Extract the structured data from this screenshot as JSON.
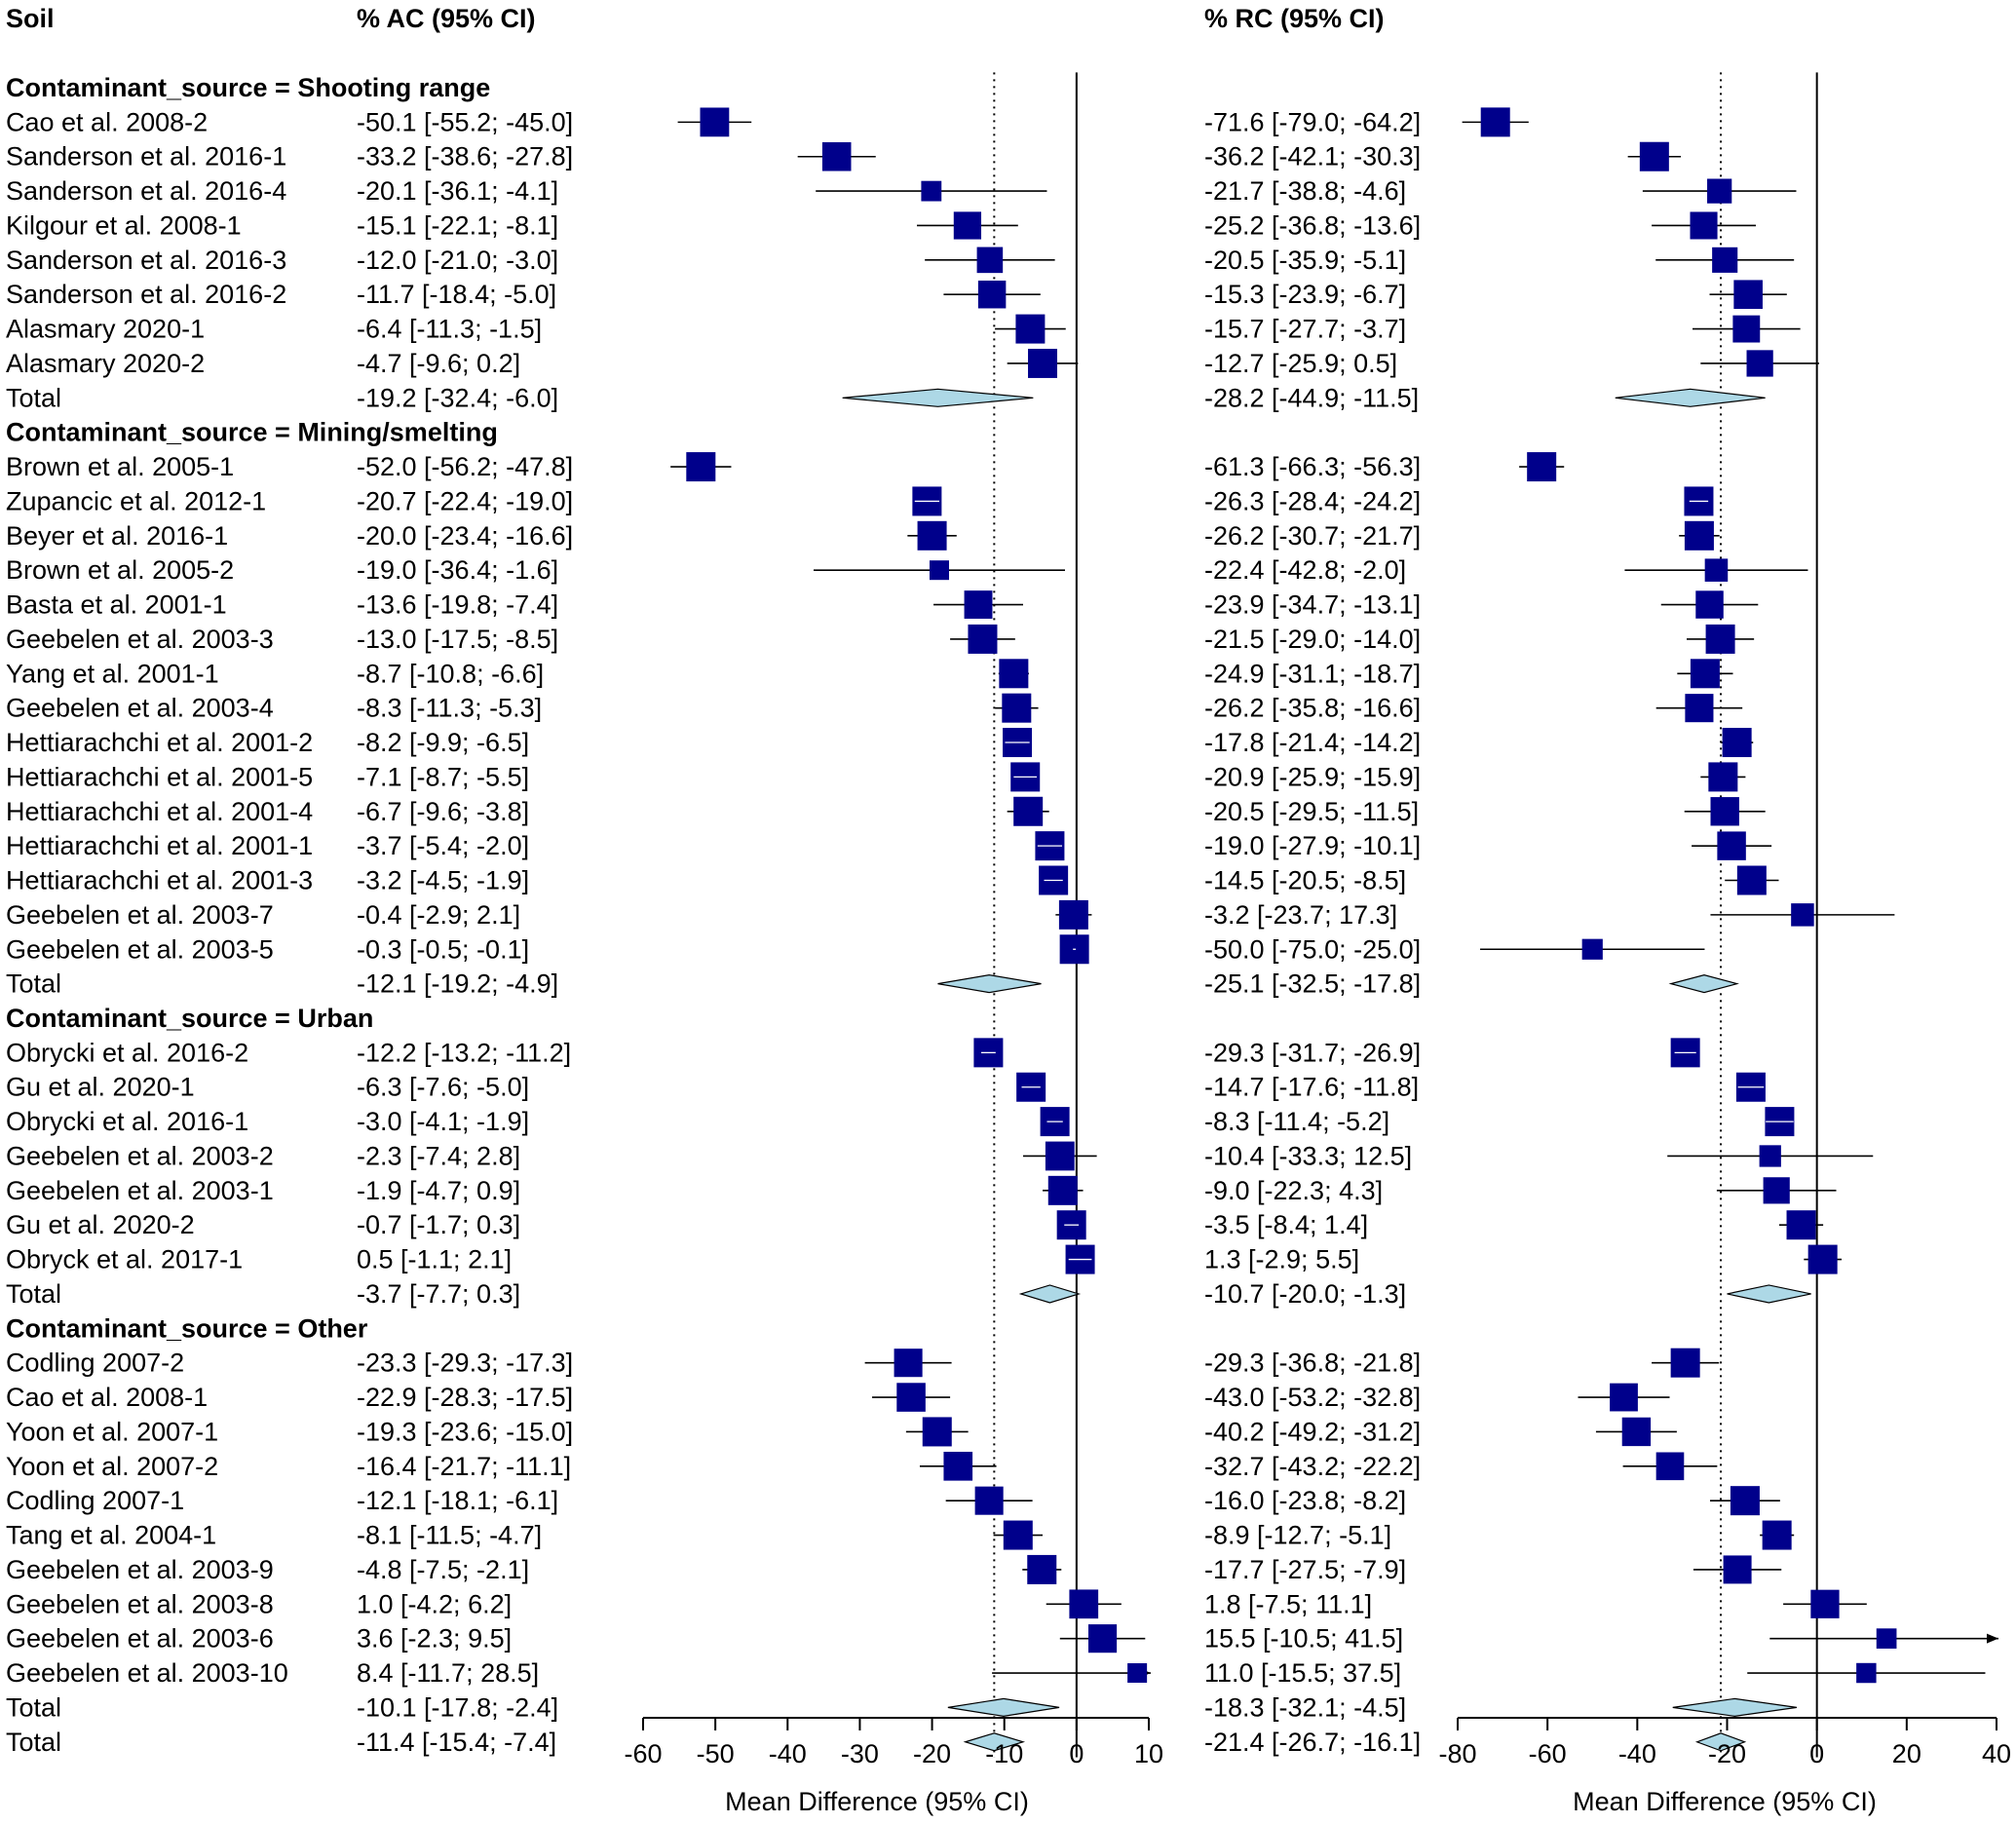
{
  "chart_data": {
    "type": "forest",
    "panels": [
      {
        "id": "ac",
        "header": "% AC (95% CI)",
        "xlabel": "Mean Difference (95% CI)",
        "xlim": [
          -60,
          10
        ],
        "ticks": [
          -60,
          -50,
          -40,
          -30,
          -20,
          -10,
          0,
          10
        ],
        "overall_ref_line": -11.4,
        "null_line": 0
      },
      {
        "id": "rc",
        "header": "% RC (95% CI)",
        "xlabel": "Mean Difference (95% CI)",
        "xlim": [
          -80,
          40
        ],
        "ticks": [
          -80,
          -60,
          -40,
          -20,
          0,
          20,
          40
        ],
        "overall_ref_line": -21.4,
        "null_line": 0
      }
    ],
    "soil_header": "Soil",
    "rows": [
      {
        "kind": "group",
        "label": "Contaminant_source = Shooting range"
      },
      {
        "kind": "study",
        "label": "Cao et al. 2008-2",
        "ac": [
          -50.1,
          -55.2,
          -45.0
        ],
        "ac_text": "-50.1 [-55.2; -45.0]",
        "rc": [
          -71.6,
          -79.0,
          -64.2
        ],
        "rc_text": "-71.6 [-79.0; -64.2]"
      },
      {
        "kind": "study",
        "label": "Sanderson et al. 2016-1",
        "ac": [
          -33.2,
          -38.6,
          -27.8
        ],
        "ac_text": "-33.2 [-38.6; -27.8]",
        "rc": [
          -36.2,
          -42.1,
          -30.3
        ],
        "rc_text": "-36.2 [-42.1; -30.3]"
      },
      {
        "kind": "study",
        "label": "Sanderson et al. 2016-4",
        "ac": [
          -20.1,
          -36.1,
          -4.1
        ],
        "ac_text": "-20.1 [-36.1; -4.1]",
        "rc": [
          -21.7,
          -38.8,
          -4.6
        ],
        "rc_text": "-21.7 [-38.8; -4.6]"
      },
      {
        "kind": "study",
        "label": "Kilgour et al. 2008-1",
        "ac": [
          -15.1,
          -22.1,
          -8.1
        ],
        "ac_text": "-15.1 [-22.1; -8.1]",
        "rc": [
          -25.2,
          -36.8,
          -13.6
        ],
        "rc_text": "-25.2 [-36.8; -13.6]"
      },
      {
        "kind": "study",
        "label": "Sanderson et al. 2016-3",
        "ac": [
          -12.0,
          -21.0,
          -3.0
        ],
        "ac_text": "-12.0 [-21.0; -3.0]",
        "rc": [
          -20.5,
          -35.9,
          -5.1
        ],
        "rc_text": "-20.5 [-35.9; -5.1]"
      },
      {
        "kind": "study",
        "label": "Sanderson et al. 2016-2",
        "ac": [
          -11.7,
          -18.4,
          -5.0
        ],
        "ac_text": "-11.7 [-18.4; -5.0]",
        "rc": [
          -15.3,
          -23.9,
          -6.7
        ],
        "rc_text": "-15.3 [-23.9; -6.7]"
      },
      {
        "kind": "study",
        "label": "Alasmary 2020-1",
        "ac": [
          -6.4,
          -11.3,
          -1.5
        ],
        "ac_text": "-6.4 [-11.3; -1.5]",
        "rc": [
          -15.7,
          -27.7,
          -3.7
        ],
        "rc_text": "-15.7 [-27.7; -3.7]"
      },
      {
        "kind": "study",
        "label": "Alasmary 2020-2",
        "ac": [
          -4.7,
          -9.6,
          0.2
        ],
        "ac_text": "-4.7 [-9.6; 0.2]",
        "rc": [
          -12.7,
          -25.9,
          0.5
        ],
        "rc_text": "-12.7 [-25.9; 0.5]"
      },
      {
        "kind": "total",
        "label": "Total",
        "ac": [
          -19.2,
          -32.4,
          -6.0
        ],
        "ac_text": "-19.2 [-32.4; -6.0]",
        "rc": [
          -28.2,
          -44.9,
          -11.5
        ],
        "rc_text": "-28.2 [-44.9; -11.5]"
      },
      {
        "kind": "group",
        "label": "Contaminant_source = Mining/smelting"
      },
      {
        "kind": "study",
        "label": "Brown et al. 2005-1",
        "ac": [
          -52.0,
          -56.2,
          -47.8
        ],
        "ac_text": "-52.0 [-56.2; -47.8]",
        "rc": [
          -61.3,
          -66.3,
          -56.3
        ],
        "rc_text": "-61.3 [-66.3; -56.3]"
      },
      {
        "kind": "study",
        "label": "Zupancic et al. 2012-1",
        "ac": [
          -20.7,
          -22.4,
          -19.0
        ],
        "ac_text": "-20.7 [-22.4; -19.0]",
        "rc": [
          -26.3,
          -28.4,
          -24.2
        ],
        "rc_text": "-26.3 [-28.4; -24.2]"
      },
      {
        "kind": "study",
        "label": "Beyer et al. 2016-1",
        "ac": [
          -20.0,
          -23.4,
          -16.6
        ],
        "ac_text": "-20.0 [-23.4; -16.6]",
        "rc": [
          -26.2,
          -30.7,
          -21.7
        ],
        "rc_text": "-26.2 [-30.7; -21.7]"
      },
      {
        "kind": "study",
        "label": "Brown et al. 2005-2",
        "ac": [
          -19.0,
          -36.4,
          -1.6
        ],
        "ac_text": "-19.0 [-36.4; -1.6]",
        "rc": [
          -22.4,
          -42.8,
          -2.0
        ],
        "rc_text": "-22.4 [-42.8; -2.0]"
      },
      {
        "kind": "study",
        "label": "Basta et al. 2001-1",
        "ac": [
          -13.6,
          -19.8,
          -7.4
        ],
        "ac_text": "-13.6 [-19.8; -7.4]",
        "rc": [
          -23.9,
          -34.7,
          -13.1
        ],
        "rc_text": "-23.9 [-34.7; -13.1]"
      },
      {
        "kind": "study",
        "label": "Geebelen et al. 2003-3",
        "ac": [
          -13.0,
          -17.5,
          -8.5
        ],
        "ac_text": "-13.0 [-17.5; -8.5]",
        "rc": [
          -21.5,
          -29.0,
          -14.0
        ],
        "rc_text": "-21.5 [-29.0; -14.0]"
      },
      {
        "kind": "study",
        "label": "Yang et al. 2001-1",
        "ac": [
          -8.7,
          -10.8,
          -6.6
        ],
        "ac_text": "-8.7 [-10.8; -6.6]",
        "rc": [
          -24.9,
          -31.1,
          -18.7
        ],
        "rc_text": "-24.9 [-31.1; -18.7]"
      },
      {
        "kind": "study",
        "label": "Geebelen et al. 2003-4",
        "ac": [
          -8.3,
          -11.3,
          -5.3
        ],
        "ac_text": "-8.3 [-11.3; -5.3]",
        "rc": [
          -26.2,
          -35.8,
          -16.6
        ],
        "rc_text": "-26.2 [-35.8; -16.6]"
      },
      {
        "kind": "study",
        "label": "Hettiarachchi et al. 2001-2",
        "ac": [
          -8.2,
          -9.9,
          -6.5
        ],
        "ac_text": "-8.2 [-9.9; -6.5]",
        "rc": [
          -17.8,
          -21.4,
          -14.2
        ],
        "rc_text": "-17.8 [-21.4; -14.2]"
      },
      {
        "kind": "study",
        "label": "Hettiarachchi et al. 2001-5",
        "ac": [
          -7.1,
          -8.7,
          -5.5
        ],
        "ac_text": "-7.1 [-8.7; -5.5]",
        "rc": [
          -20.9,
          -25.9,
          -15.9
        ],
        "rc_text": "-20.9 [-25.9; -15.9]"
      },
      {
        "kind": "study",
        "label": "Hettiarachchi et al. 2001-4",
        "ac": [
          -6.7,
          -9.6,
          -3.8
        ],
        "ac_text": "-6.7 [-9.6; -3.8]",
        "rc": [
          -20.5,
          -29.5,
          -11.5
        ],
        "rc_text": "-20.5 [-29.5; -11.5]"
      },
      {
        "kind": "study",
        "label": "Hettiarachchi et al. 2001-1",
        "ac": [
          -3.7,
          -5.4,
          -2.0
        ],
        "ac_text": "-3.7 [-5.4; -2.0]",
        "rc": [
          -19.0,
          -27.9,
          -10.1
        ],
        "rc_text": "-19.0 [-27.9; -10.1]"
      },
      {
        "kind": "study",
        "label": "Hettiarachchi et al. 2001-3",
        "ac": [
          -3.2,
          -4.5,
          -1.9
        ],
        "ac_text": "-3.2 [-4.5; -1.9]",
        "rc": [
          -14.5,
          -20.5,
          -8.5
        ],
        "rc_text": "-14.5 [-20.5; -8.5]"
      },
      {
        "kind": "study",
        "label": "Geebelen et al. 2003-7",
        "ac": [
          -0.4,
          -2.9,
          2.1
        ],
        "ac_text": "-0.4 [-2.9; 2.1]",
        "rc": [
          -3.2,
          -23.7,
          17.3
        ],
        "rc_text": "-3.2 [-23.7; 17.3]"
      },
      {
        "kind": "study",
        "label": "Geebelen et al. 2003-5",
        "ac": [
          -0.3,
          -0.5,
          -0.1
        ],
        "ac_text": "-0.3 [-0.5; -0.1]",
        "rc": [
          -50.0,
          -75.0,
          -25.0
        ],
        "rc_text": "-50.0 [-75.0; -25.0]"
      },
      {
        "kind": "total",
        "label": "Total",
        "ac": [
          -12.1,
          -19.2,
          -4.9
        ],
        "ac_text": "-12.1 [-19.2; -4.9]",
        "rc": [
          -25.1,
          -32.5,
          -17.8
        ],
        "rc_text": "-25.1 [-32.5; -17.8]"
      },
      {
        "kind": "group",
        "label": "Contaminant_source = Urban"
      },
      {
        "kind": "study",
        "label": "Obrycki et al. 2016-2",
        "ac": [
          -12.2,
          -13.2,
          -11.2
        ],
        "ac_text": "-12.2 [-13.2; -11.2]",
        "rc": [
          -29.3,
          -31.7,
          -26.9
        ],
        "rc_text": "-29.3 [-31.7; -26.9]"
      },
      {
        "kind": "study",
        "label": "Gu et al. 2020-1",
        "ac": [
          -6.3,
          -7.6,
          -5.0
        ],
        "ac_text": "-6.3 [-7.6; -5.0]",
        "rc": [
          -14.7,
          -17.6,
          -11.8
        ],
        "rc_text": "-14.7 [-17.6; -11.8]"
      },
      {
        "kind": "study",
        "label": "Obrycki et al. 2016-1",
        "ac": [
          -3.0,
          -4.1,
          -1.9
        ],
        "ac_text": "-3.0 [-4.1; -1.9]",
        "rc": [
          -8.3,
          -11.4,
          -5.2
        ],
        "rc_text": "-8.3 [-11.4; -5.2]"
      },
      {
        "kind": "study",
        "label": "Geebelen et al. 2003-2",
        "ac": [
          -2.3,
          -7.4,
          2.8
        ],
        "ac_text": "-2.3 [-7.4; 2.8]",
        "rc": [
          -10.4,
          -33.3,
          12.5
        ],
        "rc_text": "-10.4 [-33.3; 12.5]"
      },
      {
        "kind": "study",
        "label": "Geebelen et al. 2003-1",
        "ac": [
          -1.9,
          -4.7,
          0.9
        ],
        "ac_text": "-1.9 [-4.7; 0.9]",
        "rc": [
          -9.0,
          -22.3,
          4.3
        ],
        "rc_text": "-9.0 [-22.3; 4.3]"
      },
      {
        "kind": "study",
        "label": "Gu et al. 2020-2",
        "ac": [
          -0.7,
          -1.7,
          0.3
        ],
        "ac_text": "-0.7 [-1.7; 0.3]",
        "rc": [
          -3.5,
          -8.4,
          1.4
        ],
        "rc_text": "-3.5 [-8.4; 1.4]"
      },
      {
        "kind": "study",
        "label": "Obryck et al. 2017-1",
        "ac": [
          0.5,
          -1.1,
          2.1
        ],
        "ac_text": "0.5 [-1.1; 2.1]",
        "rc": [
          1.3,
          -2.9,
          5.5
        ],
        "rc_text": "1.3 [-2.9; 5.5]"
      },
      {
        "kind": "total",
        "label": "Total",
        "ac": [
          -3.7,
          -7.7,
          0.3
        ],
        "ac_text": "-3.7 [-7.7; 0.3]",
        "rc": [
          -10.7,
          -20.0,
          -1.3
        ],
        "rc_text": "-10.7 [-20.0; -1.3]"
      },
      {
        "kind": "group",
        "label": "Contaminant_source = Other"
      },
      {
        "kind": "study",
        "label": "Codling 2007-2",
        "ac": [
          -23.3,
          -29.3,
          -17.3
        ],
        "ac_text": "-23.3 [-29.3; -17.3]",
        "rc": [
          -29.3,
          -36.8,
          -21.8
        ],
        "rc_text": "-29.3 [-36.8; -21.8]"
      },
      {
        "kind": "study",
        "label": "Cao et al. 2008-1",
        "ac": [
          -22.9,
          -28.3,
          -17.5
        ],
        "ac_text": "-22.9 [-28.3; -17.5]",
        "rc": [
          -43.0,
          -53.2,
          -32.8
        ],
        "rc_text": "-43.0 [-53.2; -32.8]"
      },
      {
        "kind": "study",
        "label": "Yoon et al. 2007-1",
        "ac": [
          -19.3,
          -23.6,
          -15.0
        ],
        "ac_text": "-19.3 [-23.6; -15.0]",
        "rc": [
          -40.2,
          -49.2,
          -31.2
        ],
        "rc_text": "-40.2 [-49.2; -31.2]"
      },
      {
        "kind": "study",
        "label": "Yoon et al. 2007-2",
        "ac": [
          -16.4,
          -21.7,
          -11.1
        ],
        "ac_text": "-16.4 [-21.7; -11.1]",
        "rc": [
          -32.7,
          -43.2,
          -22.2
        ],
        "rc_text": "-32.7 [-43.2; -22.2]"
      },
      {
        "kind": "study",
        "label": "Codling 2007-1",
        "ac": [
          -12.1,
          -18.1,
          -6.1
        ],
        "ac_text": "-12.1 [-18.1; -6.1]",
        "rc": [
          -16.0,
          -23.8,
          -8.2
        ],
        "rc_text": "-16.0 [-23.8; -8.2]"
      },
      {
        "kind": "study",
        "label": "Tang et al. 2004-1",
        "ac": [
          -8.1,
          -11.5,
          -4.7
        ],
        "ac_text": "-8.1 [-11.5; -4.7]",
        "rc": [
          -8.9,
          -12.7,
          -5.1
        ],
        "rc_text": "-8.9 [-12.7; -5.1]"
      },
      {
        "kind": "study",
        "label": "Geebelen et al. 2003-9",
        "ac": [
          -4.8,
          -7.5,
          -2.1
        ],
        "ac_text": "-4.8 [-7.5; -2.1]",
        "rc": [
          -17.7,
          -27.5,
          -7.9
        ],
        "rc_text": "-17.7 [-27.5; -7.9]"
      },
      {
        "kind": "study",
        "label": "Geebelen et al. 2003-8",
        "ac": [
          1.0,
          -4.2,
          6.2
        ],
        "ac_text": "1.0 [-4.2; 6.2]",
        "rc": [
          1.8,
          -7.5,
          11.1
        ],
        "rc_text": "1.8 [-7.5; 11.1]"
      },
      {
        "kind": "study",
        "label": "Geebelen et al. 2003-6",
        "ac": [
          3.6,
          -2.3,
          9.5
        ],
        "ac_text": "3.6 [-2.3; 9.5]",
        "rc": [
          15.5,
          -10.5,
          41.5
        ],
        "rc_text": "15.5 [-10.5; 41.5]"
      },
      {
        "kind": "study",
        "label": "Geebelen et al. 2003-10",
        "ac": [
          8.4,
          -11.7,
          28.5
        ],
        "ac_text": "8.4 [-11.7; 28.5]",
        "rc": [
          11.0,
          -15.5,
          37.5
        ],
        "rc_text": "11.0 [-15.5; 37.5]"
      },
      {
        "kind": "total",
        "label": "Total",
        "ac": [
          -10.1,
          -17.8,
          -2.4
        ],
        "ac_text": "-10.1 [-17.8; -2.4]",
        "rc": [
          -18.3,
          -32.1,
          -4.5
        ],
        "rc_text": "-18.3 [-32.1; -4.5]"
      },
      {
        "kind": "total",
        "label": "Total",
        "ac": [
          -11.4,
          -15.4,
          -7.4
        ],
        "ac_text": "-11.4 [-15.4; -7.4]",
        "rc": [
          -21.4,
          -26.7,
          -16.1
        ],
        "rc_text": "-21.4 [-26.7; -16.1]"
      }
    ],
    "colors": {
      "square": "#00008B",
      "diamond": "#ADD8E6",
      "line": "#000000"
    }
  }
}
